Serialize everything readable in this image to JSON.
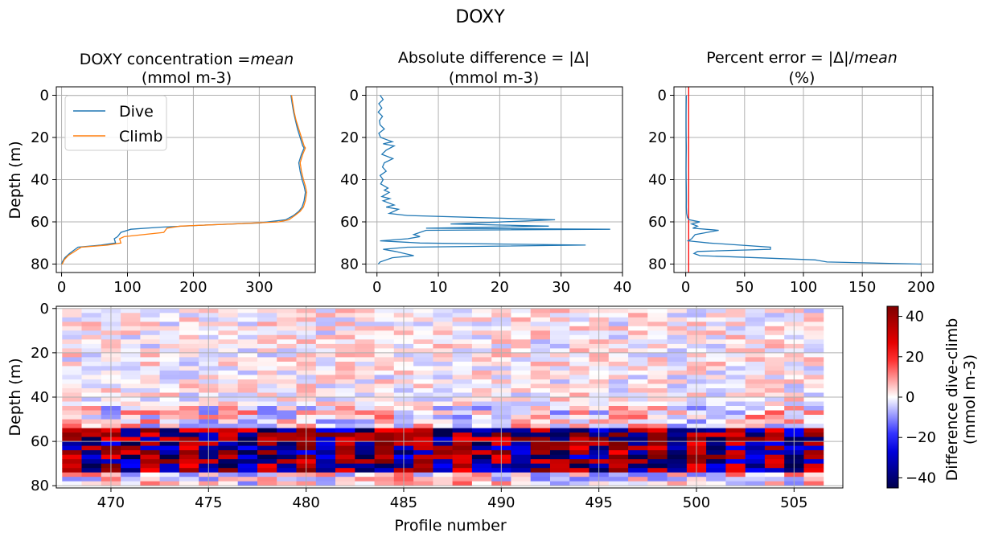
{
  "suptitle": "DOXY",
  "colors": {
    "dive": "#1f77b4",
    "climb": "#ff7f0e",
    "reference_line": "#ff0000",
    "grid": "#b0b0b0"
  },
  "chart_data": [
    {
      "type": "line",
      "title_line1": "DOXY concentration",
      "title_italic": "mean",
      "title_line2": "(mmol m-3)",
      "ylabel": "Depth (m)",
      "xlim": [
        -8,
        385
      ],
      "ylim": [
        84,
        -4
      ],
      "xticks": [
        "0",
        "100",
        "200",
        "300"
      ],
      "yticks": [
        "0",
        "20",
        "40",
        "60",
        "80"
      ],
      "grid": true,
      "legend": {
        "position": "upper-left",
        "entries": [
          "Dive",
          "Climb"
        ]
      },
      "series": [
        {
          "name": "Dive",
          "x": [
            348,
            350,
            352,
            355,
            358,
            362,
            366,
            368,
            364,
            360,
            362,
            365,
            368,
            370,
            368,
            365,
            360,
            352,
            340,
            300,
            220,
            150,
            105,
            90,
            85,
            80,
            82,
            60,
            25,
            12,
            5,
            1,
            0
          ],
          "y": [
            0,
            4,
            8,
            12,
            16,
            20,
            24,
            25,
            28,
            32,
            36,
            40,
            43,
            46,
            50,
            53,
            55,
            57,
            59,
            60.5,
            61.5,
            62.5,
            63.5,
            65,
            67,
            68,
            70,
            71,
            72,
            75,
            77,
            79,
            80
          ]
        },
        {
          "name": "Climb",
          "x": [
            349,
            351,
            353,
            356,
            360,
            364,
            368,
            370,
            366,
            362,
            364,
            367,
            370,
            372,
            370,
            367,
            362,
            354,
            345,
            330,
            260,
            180,
            160,
            155,
            95,
            88,
            90,
            70,
            30,
            10,
            4,
            1,
            0
          ],
          "y": [
            0,
            4,
            8,
            12,
            16,
            20,
            24,
            25,
            28,
            32,
            36,
            40,
            43,
            46,
            50,
            53,
            55,
            57,
            59,
            60,
            61,
            62,
            63,
            65,
            67,
            68,
            70,
            71,
            72,
            76,
            78,
            80,
            80
          ]
        }
      ]
    },
    {
      "type": "line",
      "title_line1": "Absolute difference = |Δ|",
      "title_line2": "(mmol m-3)",
      "xlim": [
        -1.8,
        40
      ],
      "ylim": [
        84,
        -4
      ],
      "xticks": [
        "0",
        "10",
        "20",
        "30",
        "40"
      ],
      "yticks": [
        "0",
        "20",
        "40",
        "60",
        "80"
      ],
      "grid": true,
      "series": [
        {
          "name": "",
          "x": [
            0.5,
            1.0,
            0.3,
            0.8,
            0.2,
            0.9,
            0.4,
            0.5,
            1.2,
            0.3,
            0.6,
            2.5,
            1.0,
            2.8,
            1.5,
            0.8,
            2.6,
            1.2,
            0.9,
            1.5,
            0.5,
            1.0,
            0.6,
            1.8,
            1.2,
            2.0,
            0.8,
            2.1,
            1.0,
            2.8,
            1.5,
            3.5,
            2.0,
            5.0,
            29.0,
            12.0,
            28.0,
            8.0,
            38.0,
            8.0,
            6.0,
            7.0,
            5.0,
            0.5,
            7.0,
            34.0,
            5.0,
            1.0,
            3.0,
            6.0,
            2.5,
            0.5,
            0.2
          ],
          "y": [
            0,
            2,
            4,
            6,
            8,
            10,
            12,
            14,
            16,
            18,
            20,
            22,
            23,
            24,
            26,
            28,
            30,
            32,
            34,
            36,
            38,
            40,
            42,
            44,
            45,
            46,
            48,
            49,
            50,
            52,
            53,
            54,
            56,
            57,
            59,
            61,
            62,
            63,
            63.5,
            64,
            66,
            67,
            68,
            69,
            70,
            71,
            72,
            73,
            74,
            76,
            77,
            79,
            80
          ]
        }
      ]
    },
    {
      "type": "line",
      "title_line1": "Percent error = |Δ|/",
      "title_italic": "mean",
      "title_line2": "(%)",
      "xlim": [
        -10,
        210
      ],
      "ylim": [
        84,
        -4
      ],
      "xticks": [
        "0",
        "50",
        "100",
        "150",
        "200"
      ],
      "yticks": [
        "0",
        "20",
        "40",
        "60",
        "80"
      ],
      "grid": true,
      "reference_line_x": 2.5,
      "series": [
        {
          "name": "",
          "x": [
            0.5,
            0.4,
            0.3,
            0.3,
            0.4,
            0.5,
            0.4,
            0.3,
            0.4,
            0.5,
            0.6,
            0.5,
            0.8,
            1.5,
            3.0,
            12.0,
            5.0,
            10.0,
            6.0,
            28.0,
            8.0,
            5.0,
            2.0,
            20.0,
            72.0,
            72.0,
            10.0,
            7.0,
            12.0,
            110.0,
            120.0,
            200.0
          ],
          "y": [
            0,
            5,
            10,
            15,
            20,
            25,
            30,
            35,
            40,
            45,
            50,
            53,
            56,
            58,
            59,
            60,
            61,
            62,
            63,
            64,
            66,
            68,
            69,
            70,
            72,
            73,
            74,
            75,
            76,
            78,
            79,
            80
          ]
        }
      ]
    },
    {
      "type": "heatmap",
      "ylabel": "Depth (m)",
      "xlabel": "Profile number",
      "xlim": [
        467.2,
        507.5
      ],
      "ylim": [
        81,
        -1
      ],
      "xticks": [
        "470",
        "475",
        "480",
        "485",
        "490",
        "495",
        "500",
        "505"
      ],
      "yticks": [
        "0",
        "20",
        "40",
        "60",
        "80"
      ],
      "grid": true,
      "profiles_start": 467.5,
      "profiles_end": 506.5,
      "depth_bins": [
        0,
        2,
        4,
        6,
        8,
        10,
        12,
        14,
        16,
        18,
        20,
        22,
        24,
        26,
        28,
        30,
        32,
        34,
        36,
        38,
        40,
        42,
        44,
        46,
        48,
        50,
        52,
        54,
        56,
        58,
        60,
        62,
        64,
        66,
        68,
        70,
        72,
        74,
        76,
        78,
        80
      ],
      "colorbar": {
        "label_line1": "Difference dive-climb",
        "label_line2": "(mmol m-3)",
        "range": [
          -45,
          45
        ],
        "ticks": [
          40,
          20,
          0,
          -20,
          -40
        ],
        "tick_labels": [
          "40",
          "20",
          "0",
          "−20",
          "−40"
        ],
        "colormap": "seismic"
      }
    }
  ]
}
